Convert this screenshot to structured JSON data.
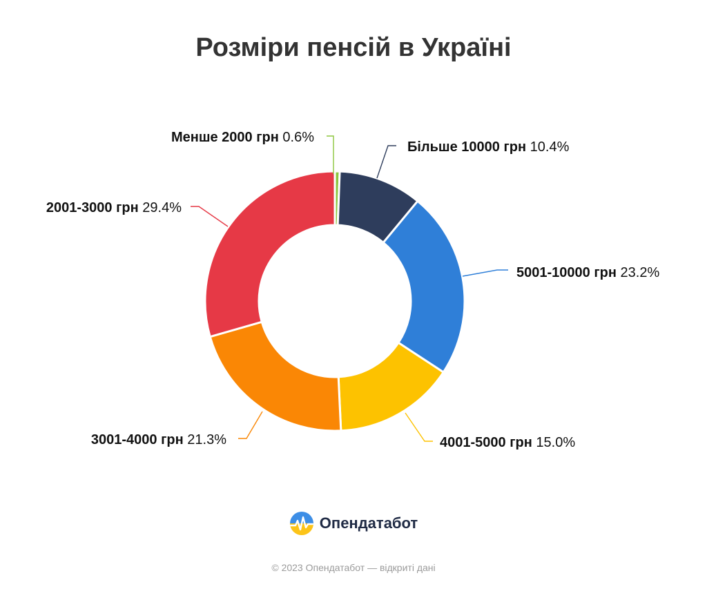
{
  "title": "Розміри пенсій в Україні",
  "brand": {
    "name": "Опендатабот",
    "logo_icon": "opendatabot-logo-icon"
  },
  "footer": "© 2023 Опендатабот — відкриті дані",
  "chart_data": {
    "type": "pie",
    "variant": "donut",
    "title": "Розміри пенсій в Україні",
    "unit": "%",
    "categories": [
      "Менше 2000 грн",
      "Більше 10000 грн",
      "5001-10000 грн",
      "4001-5000 грн",
      "3001-4000 грн",
      "2001-3000 грн"
    ],
    "values": [
      0.6,
      10.4,
      23.2,
      15.0,
      21.3,
      29.4
    ],
    "value_labels": [
      "0.6%",
      "10.4%",
      "23.2%",
      "15.0%",
      "21.3%",
      "29.4%"
    ],
    "colors": [
      "#8dc63f",
      "#2e3d5c",
      "#2f7fd8",
      "#fdc200",
      "#fa8705",
      "#e63946"
    ],
    "start_angle_deg": 0,
    "direction": "clockwise",
    "legend": "none",
    "labels": "outside with leader lines"
  }
}
